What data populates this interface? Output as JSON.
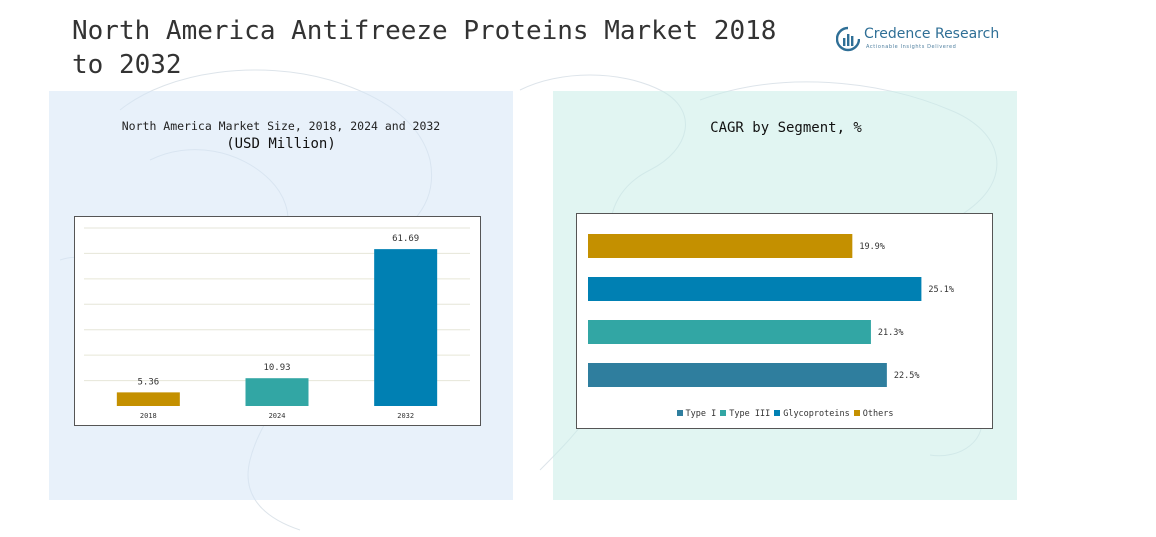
{
  "header": {
    "title": "North America Antifreeze Proteins Market 2018 to 2032",
    "brand": "Credence Research",
    "tagline": "Actionable Insights Delivered"
  },
  "colors": {
    "gold": "#c49000",
    "teal": "#32a6a4",
    "blue": "#0080b3",
    "steel": "#2f7e9e"
  },
  "chart_data": [
    {
      "type": "bar",
      "title": "North America Market Size, 2018, 2024 and 2032",
      "subtitle": "(USD Million)",
      "categories": [
        "2018",
        "2024",
        "2032"
      ],
      "values": [
        5.36,
        10.93,
        61.69
      ],
      "value_labels": [
        "5.36",
        "10.93",
        "61.69"
      ],
      "colors": [
        "#c49000",
        "#32a6a4",
        "#0080b3"
      ],
      "ylim": [
        0,
        70
      ],
      "grid": true
    },
    {
      "type": "bar",
      "orientation": "horizontal",
      "title": "CAGR by Segment, %",
      "categories": [
        "Others",
        "Glycoproteins",
        "Type III",
        "Type I"
      ],
      "values": [
        19.9,
        25.1,
        21.3,
        22.5
      ],
      "value_labels": [
        "19.9%",
        "25.1%",
        "21.3%",
        "22.5%"
      ],
      "colors": [
        "#c49000",
        "#0080b3",
        "#32a6a4",
        "#2f7e9e"
      ],
      "xlim": [
        0,
        26.5
      ],
      "legend": {
        "placement": "bottom",
        "entries": [
          {
            "name": "Type I",
            "color": "#2f7e9e"
          },
          {
            "name": "Type III",
            "color": "#32a6a4"
          },
          {
            "name": "Glycoproteins",
            "color": "#0080b3"
          },
          {
            "name": "Others",
            "color": "#c49000"
          }
        ]
      }
    }
  ]
}
